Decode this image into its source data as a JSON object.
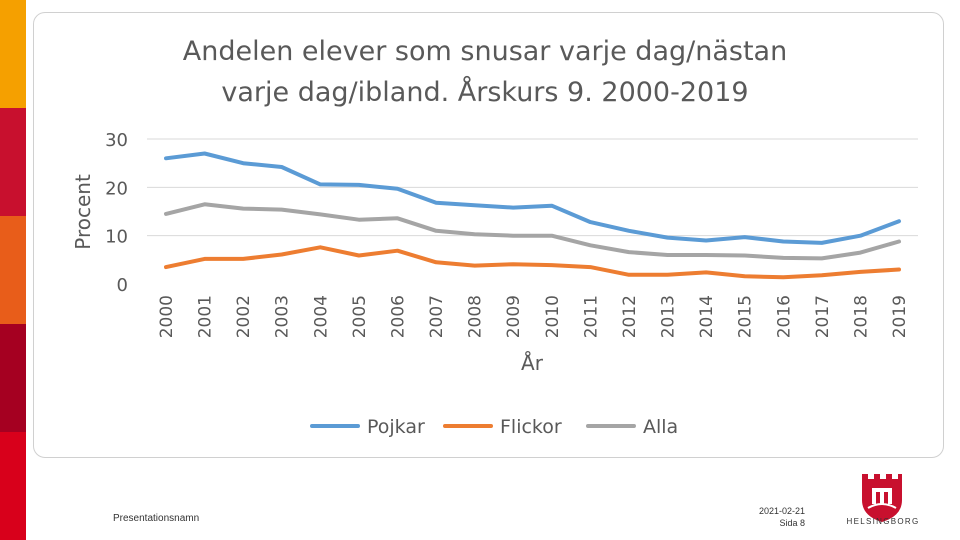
{
  "slide": {
    "footer_name": "Presentationsnamn",
    "footer_date": "2021-02-21",
    "footer_page": "Sida 8",
    "logo_text": "HELSINGBORG",
    "stripe_colors": [
      "#f5a000",
      "#c8102e",
      "#e85d1a",
      "#a50021",
      "#d8001b"
    ]
  },
  "chart_data": {
    "type": "line",
    "title_lines": [
      "Andelen elever som snusar varje dag/nästan",
      "varje dag/ibland. Årskurs 9. 2000-2019"
    ],
    "xlabel": "År",
    "ylabel": "Procent",
    "ylim": [
      0,
      30
    ],
    "yticks": [
      0,
      10,
      20,
      30
    ],
    "grid": true,
    "legend_position": "bottom",
    "categories": [
      "2000",
      "2001",
      "2002",
      "2003",
      "2004",
      "2005",
      "2006",
      "2007",
      "2008",
      "2009",
      "2010",
      "2011",
      "2012",
      "2013",
      "2014",
      "2015",
      "2016",
      "2017",
      "2018",
      "2019"
    ],
    "series": [
      {
        "name": "Pojkar",
        "color": "#5b9bd5",
        "values": [
          26,
          27,
          25,
          24.2,
          20.6,
          20.5,
          19.7,
          16.8,
          16.3,
          15.8,
          16.2,
          12.8,
          11,
          9.6,
          9,
          9.7,
          8.8,
          8.5,
          10,
          13
        ]
      },
      {
        "name": "Flickor",
        "color": "#ed7d31",
        "values": [
          3.5,
          5.2,
          5.2,
          6.1,
          7.6,
          5.9,
          6.9,
          4.5,
          3.8,
          4.1,
          3.9,
          3.5,
          1.9,
          1.9,
          2.4,
          1.6,
          1.4,
          1.8,
          2.5,
          3
        ]
      },
      {
        "name": "Alla",
        "color": "#a5a5a5",
        "values": [
          14.5,
          16.5,
          15.6,
          15.4,
          14.4,
          13.3,
          13.6,
          11,
          10.3,
          10,
          10,
          8,
          6.6,
          6,
          6,
          5.9,
          5.4,
          5.3,
          6.5,
          8.8
        ]
      }
    ]
  }
}
